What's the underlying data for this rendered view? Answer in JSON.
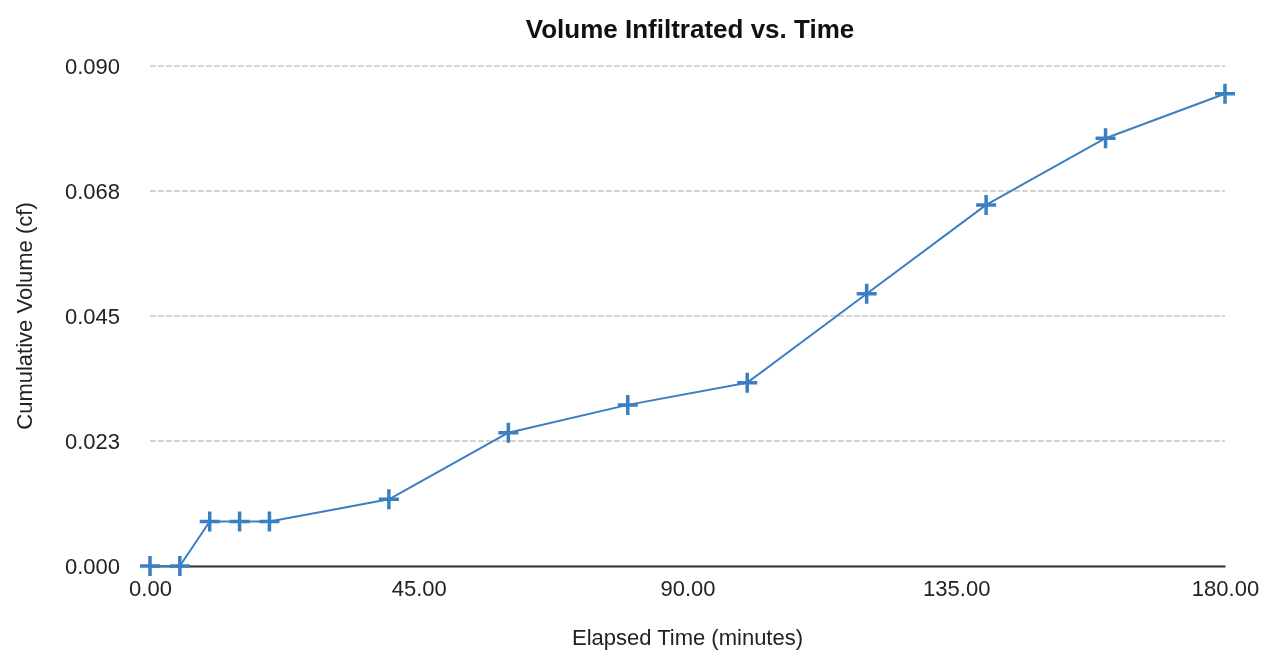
{
  "chart_data": {
    "type": "line",
    "title": "Volume Infiltrated vs. Time",
    "xlabel": "Elapsed Time (minutes)",
    "ylabel": "Cumulative Volume (cf)",
    "x": [
      0,
      5,
      10,
      15,
      20,
      40,
      60,
      80,
      100,
      120,
      140,
      160,
      180
    ],
    "series": [
      {
        "color": "#3a7fc1",
        "values": [
          0,
          0,
          0.008,
          0.008,
          0.008,
          0.012,
          0.024,
          0.029,
          0.033,
          0.049,
          0.065,
          0.077,
          0.085
        ]
      }
    ],
    "xlim": [
      0,
      180
    ],
    "xticks": [
      {
        "value": 0,
        "label": "0.00"
      },
      {
        "value": 45,
        "label": "45.00"
      },
      {
        "value": 90,
        "label": "90.00"
      },
      {
        "value": 135,
        "label": "135.00"
      },
      {
        "value": 180,
        "label": "180.00"
      }
    ],
    "ylim": [
      0,
      0.09
    ],
    "yticks": [
      {
        "value": 0,
        "label": "0.000"
      },
      {
        "value": 0.0225,
        "label": "0.023"
      },
      {
        "value": 0.045,
        "label": "0.045"
      },
      {
        "value": 0.0675,
        "label": "0.068"
      },
      {
        "value": 0.09,
        "label": "0.090"
      }
    ],
    "grid": "y",
    "marker": "cross",
    "line_style": "solid"
  }
}
